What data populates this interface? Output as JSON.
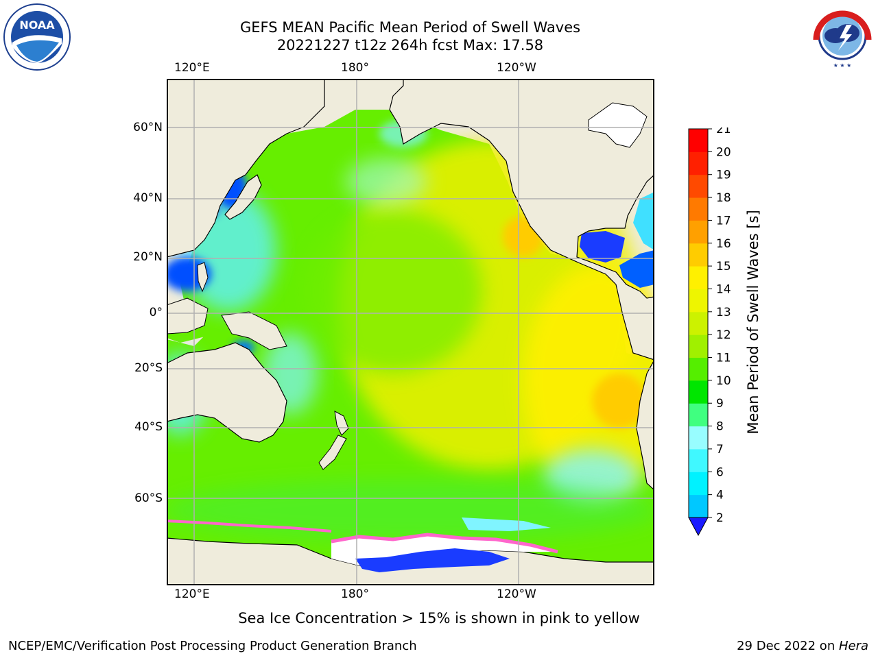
{
  "header": {
    "title": "GEFS MEAN Pacific Mean Period of Swell Waves",
    "subtitle": "20221227 t12z 264h fcst   Max: 17.58"
  },
  "logos": {
    "left_name": "NOAA",
    "left_ring_text": "NATIONAL OCEANIC AND ATMOSPHERIC ADMINISTRATION · U.S. DEPARTMENT OF COMMERCE",
    "right_ring_text": "NATIONAL WEATHER SERVICE"
  },
  "map": {
    "lon_labels": [
      "120°E",
      "180°",
      "120°W"
    ],
    "lat_labels": [
      "60°N",
      "40°N",
      "20°N",
      "0°",
      "20°S",
      "40°S",
      "60°S"
    ],
    "colors": {
      "land": "#efecdc",
      "grid": "#b0b0b0",
      "ice": "#ffffff"
    }
  },
  "colorbar": {
    "label": "Mean Period of Swell Waves [s]",
    "ticks": [
      "2",
      "4",
      "6",
      "7",
      "8",
      "9",
      "10",
      "11",
      "12",
      "13",
      "14",
      "15",
      "16",
      "17",
      "18",
      "19",
      "20",
      "21"
    ],
    "colors": [
      "#0070ff",
      "#00c8ff",
      "#00f2ff",
      "#40f8ff",
      "#98fdff",
      "#40ff80",
      "#00e600",
      "#55ee00",
      "#a0f000",
      "#ccf200",
      "#eef500",
      "#fff000",
      "#ffcc00",
      "#ffa000",
      "#ff7a00",
      "#ff4a00",
      "#ff2000",
      "#ff0000"
    ],
    "under_color": "#1a1aff"
  },
  "note": "Sea Ice Concentration > 15% is shown in pink to yellow",
  "footer": {
    "left": "NCEP/EMC/Verification Post Processing Product Generation Branch",
    "right_date": "29 Dec 2022 on ",
    "right_host": "Hera"
  }
}
